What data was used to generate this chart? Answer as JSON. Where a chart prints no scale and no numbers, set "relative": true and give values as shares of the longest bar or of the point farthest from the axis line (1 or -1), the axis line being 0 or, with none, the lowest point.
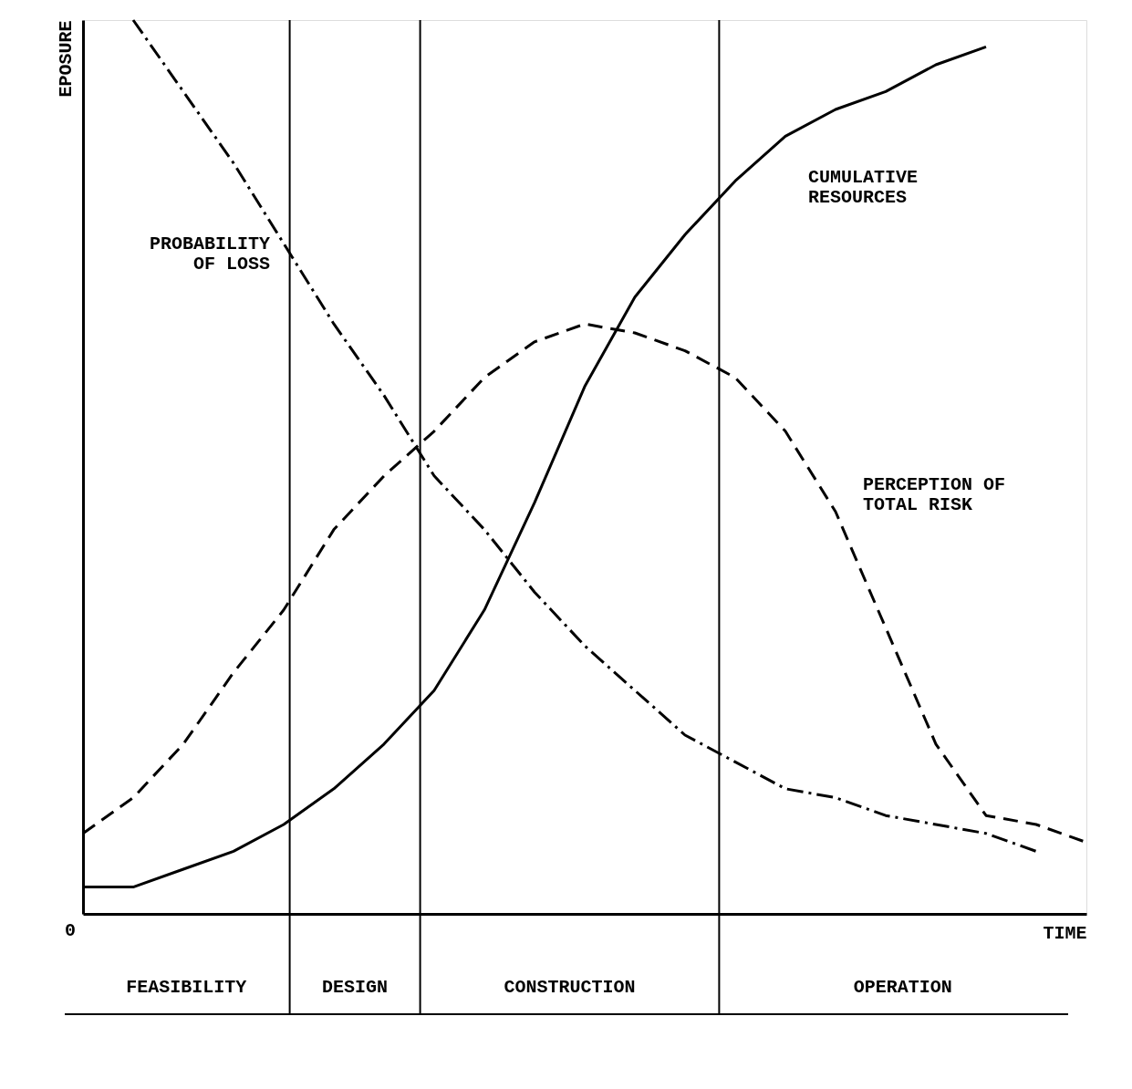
{
  "chart_data": {
    "type": "line",
    "relative": true,
    "xlabel": "TIME",
    "ylabel": "EPOSURE",
    "tick_labels": false,
    "legend": false,
    "grid": false,
    "categories": [
      null,
      null,
      null,
      null,
      null,
      null,
      null,
      null,
      null,
      null,
      null,
      null,
      null,
      null,
      null,
      null,
      null,
      null,
      null,
      null,
      null
    ],
    "annotations": [
      "0",
      "FEASIBILITY",
      "DESIGN",
      "CONSTRUCTION",
      "OPERATION"
    ],
    "series": [
      {
        "name": "PROBABILITY\nOF LOSS",
        "color": "#000000",
        "line_style": "dashdot",
        "values": [
          null,
          1.0,
          0.92,
          0.84,
          0.75,
          0.66,
          0.58,
          0.49,
          0.43,
          0.36,
          0.3,
          0.25,
          0.2,
          0.17,
          0.14,
          0.13,
          0.11,
          0.1,
          0.09,
          0.07,
          null
        ]
      },
      {
        "name": "CUMULATIVE\nRESOURCES",
        "color": "#000000",
        "line_style": "solid",
        "values": [
          0.03,
          0.03,
          0.05,
          0.07,
          0.1,
          0.14,
          0.19,
          0.25,
          0.34,
          0.46,
          0.59,
          0.69,
          0.76,
          0.82,
          0.87,
          0.9,
          0.92,
          0.95,
          0.97,
          null,
          null
        ]
      },
      {
        "name": "PERCEPTION OF\nTOTAL RISK",
        "color": "#000000",
        "line_style": "dashed",
        "values": [
          0.09,
          0.13,
          0.19,
          0.27,
          0.34,
          0.43,
          0.49,
          0.54,
          0.6,
          0.64,
          0.66,
          0.65,
          0.63,
          0.6,
          0.54,
          0.45,
          0.32,
          0.19,
          0.11,
          0.1,
          0.08
        ]
      }
    ]
  }
}
